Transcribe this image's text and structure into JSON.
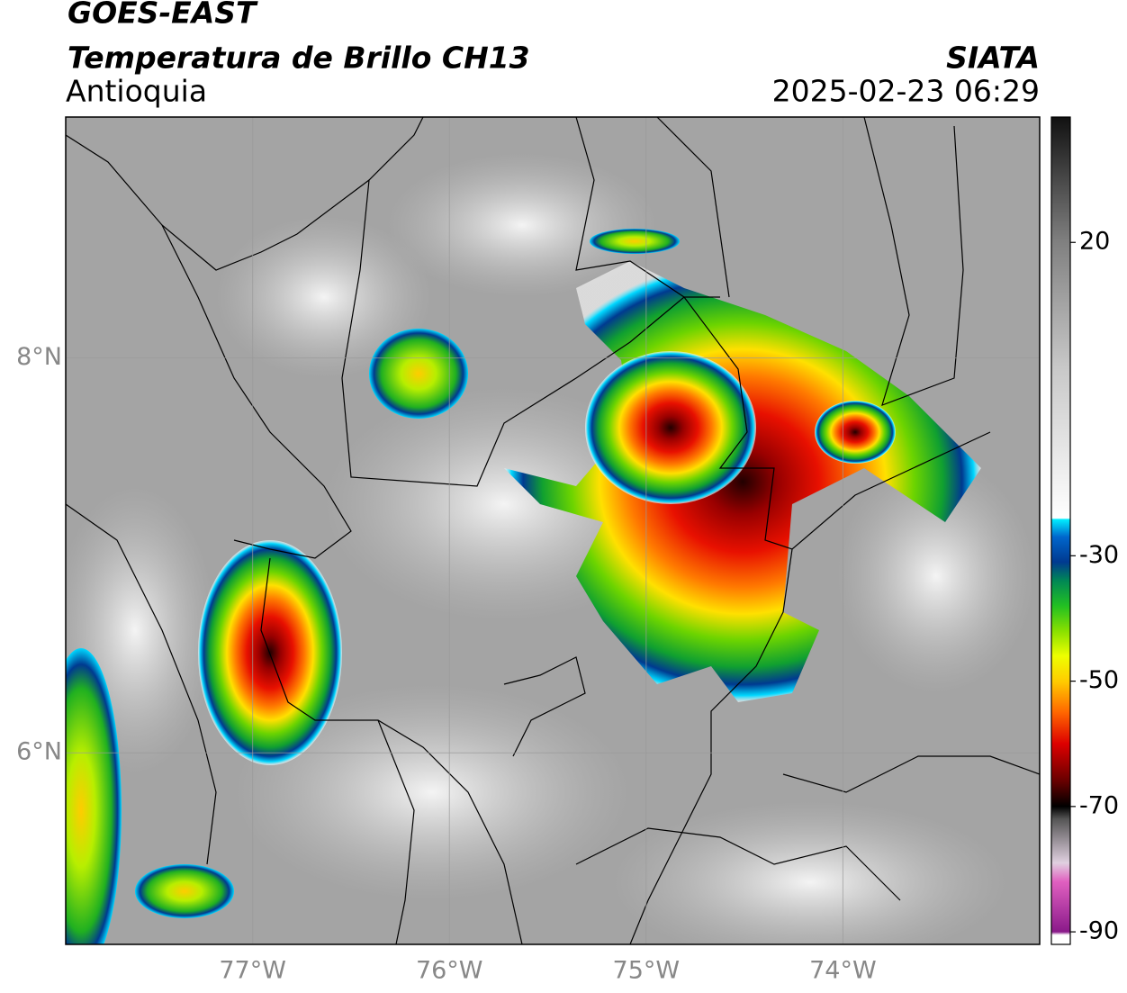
{
  "header": {
    "title": "GOES-EAST",
    "subtitle": "Temperatura de Brillo CH13",
    "region": "Antioquia",
    "source": "SIATA",
    "datetime": "2025-02-23 06:29"
  },
  "map": {
    "lon_range": [
      -77.95,
      -73.0
    ],
    "lat_range": [
      5.03,
      9.22
    ],
    "lat_ticks": [
      {
        "value": 8,
        "label": "8°N"
      },
      {
        "value": 6,
        "label": "6°N"
      }
    ],
    "lon_ticks": [
      {
        "value": -77,
        "label": "77°W"
      },
      {
        "value": -76,
        "label": "76°W"
      },
      {
        "value": -75,
        "label": "75°W"
      },
      {
        "value": -74,
        "label": "74°W"
      }
    ],
    "grid": true,
    "grid_color": "#9a9a9a"
  },
  "colorbar": {
    "lim": [
      -92,
      40
    ],
    "ticks": [
      20,
      -30,
      -50,
      -70,
      -90
    ],
    "stops": [
      {
        "value": -92,
        "color": "#ffffff"
      },
      {
        "value": -90.5,
        "color": "#ffffff"
      },
      {
        "value": -90,
        "color": "#8a1a8a"
      },
      {
        "value": -82,
        "color": "#e060c0"
      },
      {
        "value": -79,
        "color": "#e0d0e0"
      },
      {
        "value": -72,
        "color": "#555555"
      },
      {
        "value": -70,
        "color": "#000000"
      },
      {
        "value": -66,
        "color": "#660000"
      },
      {
        "value": -60,
        "color": "#dd0000"
      },
      {
        "value": -55,
        "color": "#ff6600"
      },
      {
        "value": -50,
        "color": "#ffcc00"
      },
      {
        "value": -46,
        "color": "#eeff00"
      },
      {
        "value": -42,
        "color": "#88e000"
      },
      {
        "value": -38,
        "color": "#22c022"
      },
      {
        "value": -34,
        "color": "#008855"
      },
      {
        "value": -31,
        "color": "#003a90"
      },
      {
        "value": -27,
        "color": "#0066cc"
      },
      {
        "value": -24.2,
        "color": "#00eeff"
      },
      {
        "value": -24,
        "color": "#ffffff"
      },
      {
        "value": 0,
        "color": "#c8c8c8"
      },
      {
        "value": 20,
        "color": "#808080"
      },
      {
        "value": 40,
        "color": "#111111"
      }
    ]
  }
}
